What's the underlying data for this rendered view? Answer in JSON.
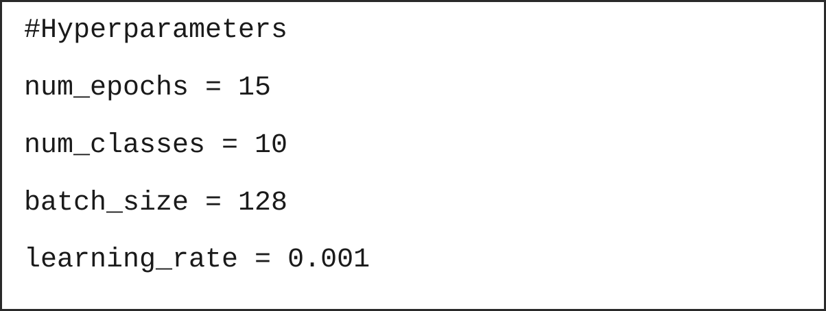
{
  "code": {
    "lines": [
      "#Hyperparameters",
      "num_epochs = 15",
      "num_classes = 10",
      "batch_size = 128",
      "learning_rate = 0.001"
    ]
  }
}
